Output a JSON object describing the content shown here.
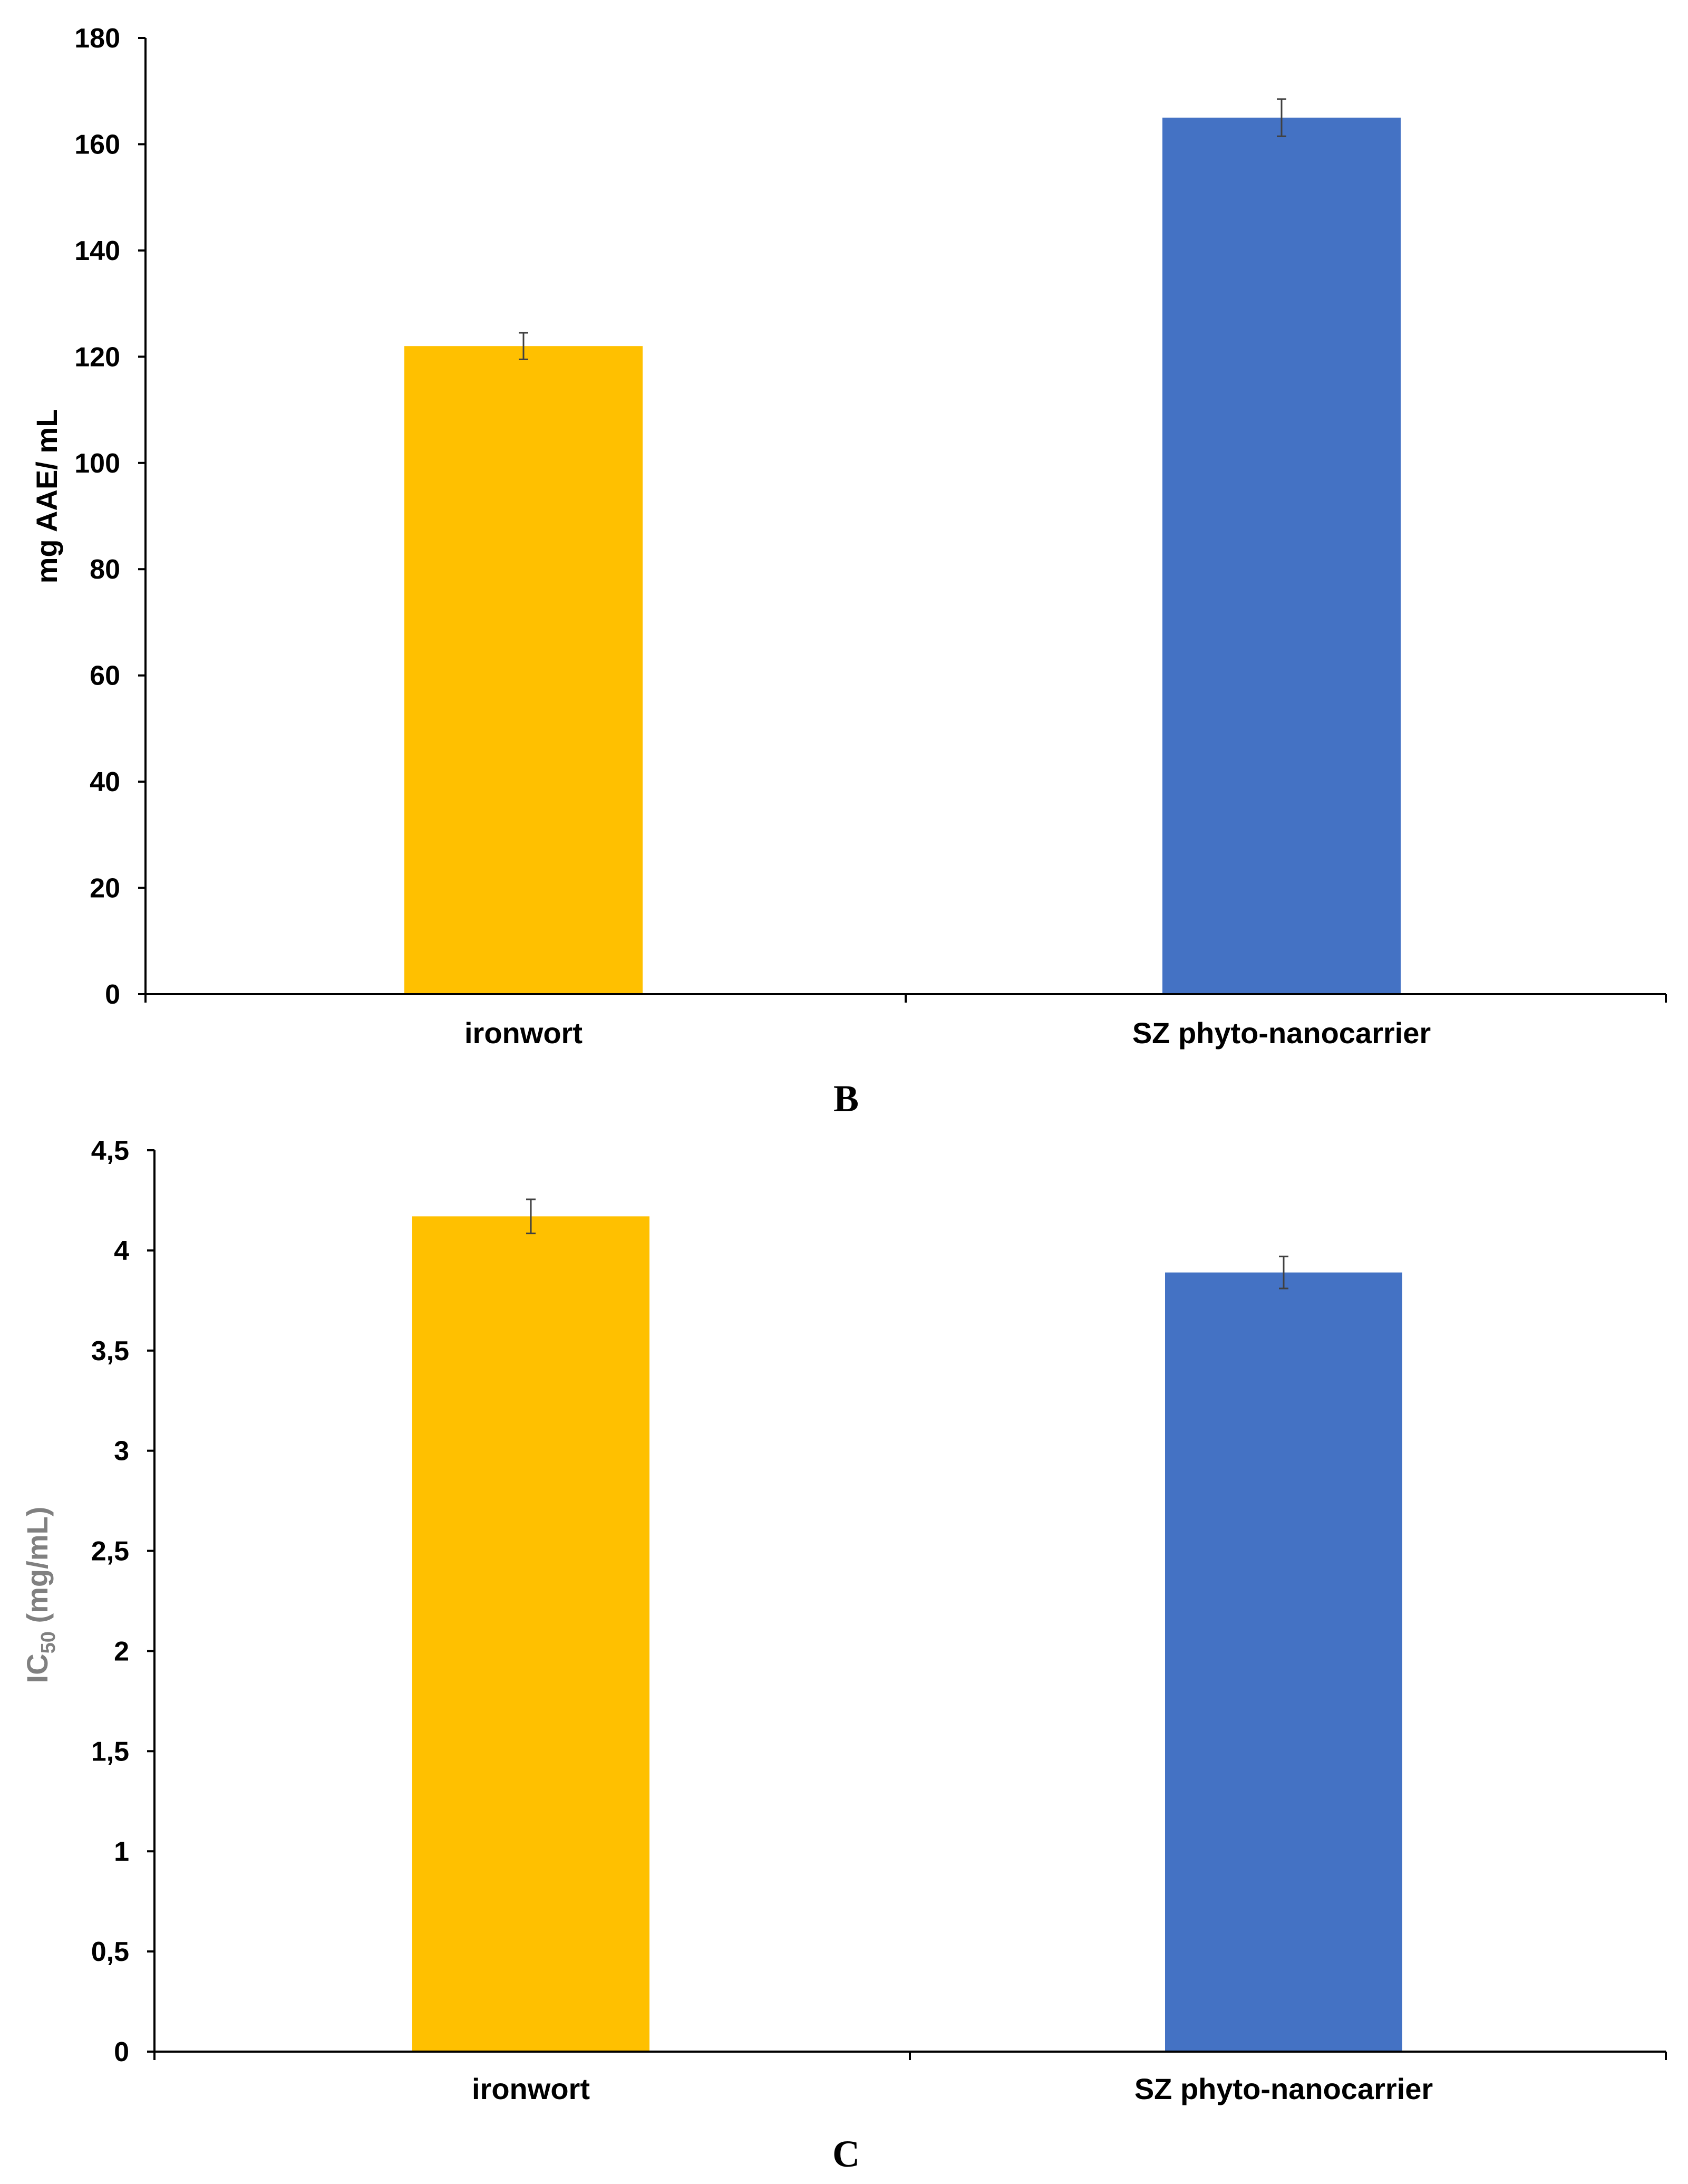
{
  "colors": {
    "ironwort": "#FFC000",
    "nanocarrier": "#4472C4",
    "error_bar": "#404040",
    "axis": "#000000",
    "c_ylabel": "#808080"
  },
  "chart_data": [
    {
      "type": "bar",
      "panel_letter": "B",
      "title": "",
      "ylabel": "mg AAE/ mL",
      "xlabel": "",
      "ylim": [
        0,
        180
      ],
      "yticks": [
        0,
        20,
        40,
        60,
        80,
        100,
        120,
        140,
        160,
        180
      ],
      "ytick_labels": [
        "0",
        "20",
        "40",
        "60",
        "80",
        "100",
        "120",
        "140",
        "160",
        "180"
      ],
      "categories": [
        "ironwort",
        "SZ phyto-nanocarrier"
      ],
      "values": [
        122,
        165
      ],
      "errors": [
        2.5,
        3.5
      ]
    },
    {
      "type": "bar",
      "panel_letter": "C",
      "title": "",
      "ylabel_main": "IC",
      "ylabel_sub": "50",
      "ylabel_unit": " (mg/mL)",
      "xlabel": "",
      "ylim": [
        0,
        4.5
      ],
      "yticks": [
        0,
        0.5,
        1,
        1.5,
        2,
        2.5,
        3,
        3.5,
        4,
        4.5
      ],
      "ytick_labels": [
        "0",
        "0,5",
        "1",
        "1,5",
        "2",
        "2,5",
        "3",
        "3,5",
        "4",
        "4,5"
      ],
      "categories": [
        "ironwort",
        "SZ phyto-nanocarrier"
      ],
      "values": [
        4.17,
        3.89
      ],
      "errors": [
        0.085,
        0.08
      ]
    }
  ]
}
